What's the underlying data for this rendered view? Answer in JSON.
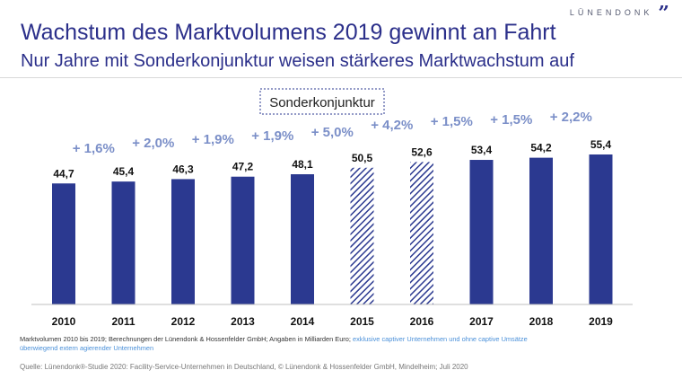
{
  "brand": {
    "name": "LÜNENDONK",
    "mark": "”"
  },
  "header": {
    "title": "Wachstum des Marktvolumens 2019 gewinnt an Fahrt",
    "subtitle": "Nur Jahre mit Sonderkonjunktur weisen stärkeres Marktwachstum auf"
  },
  "chart_data": {
    "type": "bar",
    "title": "",
    "xlabel": "",
    "ylabel": "",
    "unit": "Mrd. Euro",
    "categories": [
      "2010",
      "2011",
      "2012",
      "2013",
      "2014",
      "2015",
      "2016",
      "2017",
      "2018",
      "2019"
    ],
    "values": [
      44.7,
      45.4,
      46.3,
      47.2,
      48.1,
      50.5,
      52.6,
      53.4,
      54.2,
      55.4
    ],
    "value_labels": [
      "44,7",
      "45,4",
      "46,3",
      "47,2",
      "48,1",
      "50,5",
      "52,6",
      "53,4",
      "54,2",
      "55,4"
    ],
    "growth_labels": [
      "+ 1,6%",
      "+ 2,0%",
      "+ 1,9%",
      "+ 1,9%",
      "+ 5,0%",
      "+ 4,2%",
      "+ 1,5%",
      "+ 1,5%",
      "+ 2,2%"
    ],
    "hatched": [
      false,
      false,
      false,
      false,
      false,
      true,
      true,
      false,
      false,
      false
    ],
    "annotation": "Sonderkonjunktur",
    "ylim": [
      0,
      55.4
    ],
    "grid": false,
    "colors": {
      "bar": "#2b3990",
      "growth": "#7b8fc8",
      "text": "#111111"
    }
  },
  "footnote": {
    "main": "Marktvolumen 2010 bis 2019; Berechnungen der Lünendonk & Hossenfelder GmbH; Angaben in Milliarden Euro;",
    "highlight": "exklusive captiver Unternehmen und ohne captive Umsätze überwiegend extern agierender Unternehmen"
  },
  "source": "Quelle: Lünendonk®-Studie 2020: Facility-Service-Unternehmen in Deutschland, © Lünendonk & Hossenfelder GmbH, Mindelheim; Juli 2020"
}
